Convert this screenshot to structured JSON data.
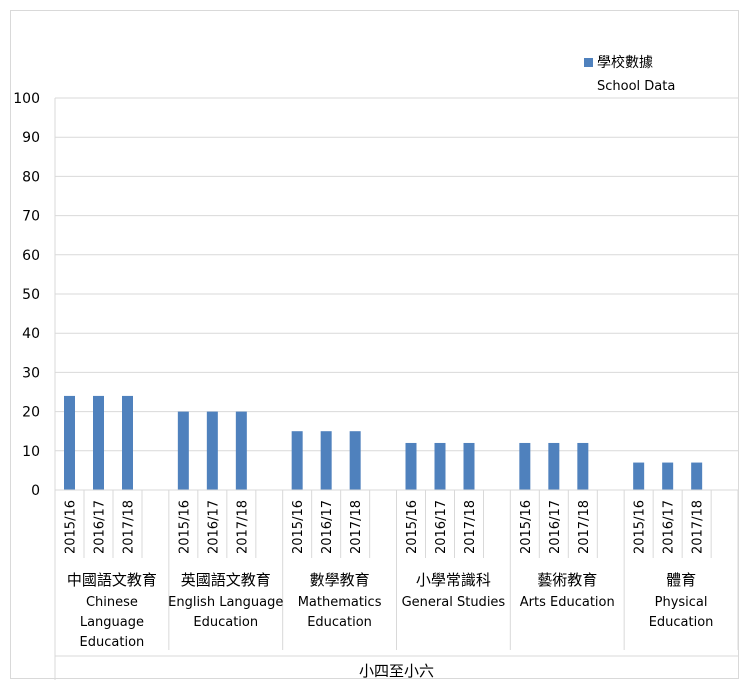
{
  "chart_data": {
    "type": "bar",
    "legend": {
      "label_zh": "學校數據",
      "label_en": "School Data",
      "placement": "top-right",
      "color": "#4F81BD"
    },
    "ylim": [
      0,
      100
    ],
    "yticks": [
      0,
      10,
      20,
      30,
      40,
      50,
      60,
      70,
      80,
      90,
      100
    ],
    "grid": true,
    "years": [
      "2015/16",
      "2016/17",
      "2017/18"
    ],
    "groups": [
      {
        "zh": "中國語文教育",
        "en": [
          "Chinese",
          "Language",
          "Education"
        ],
        "values": [
          24,
          24,
          24
        ]
      },
      {
        "zh": "英國語文教育",
        "en": [
          "English Language",
          "Education"
        ],
        "values": [
          20,
          20,
          20
        ]
      },
      {
        "zh": "數學教育",
        "en": [
          "Mathematics",
          "Education"
        ],
        "values": [
          15,
          15,
          15
        ]
      },
      {
        "zh": "小學常識科",
        "en": [
          "General Studies"
        ],
        "values": [
          12,
          12,
          12
        ]
      },
      {
        "zh": "藝術教育",
        "en": [
          "Arts Education"
        ],
        "values": [
          12,
          12,
          12
        ]
      },
      {
        "zh": "體育",
        "en": [
          "Physical",
          "Education"
        ],
        "values": [
          7,
          7,
          7
        ]
      }
    ],
    "xlabel": "小四至小六"
  }
}
